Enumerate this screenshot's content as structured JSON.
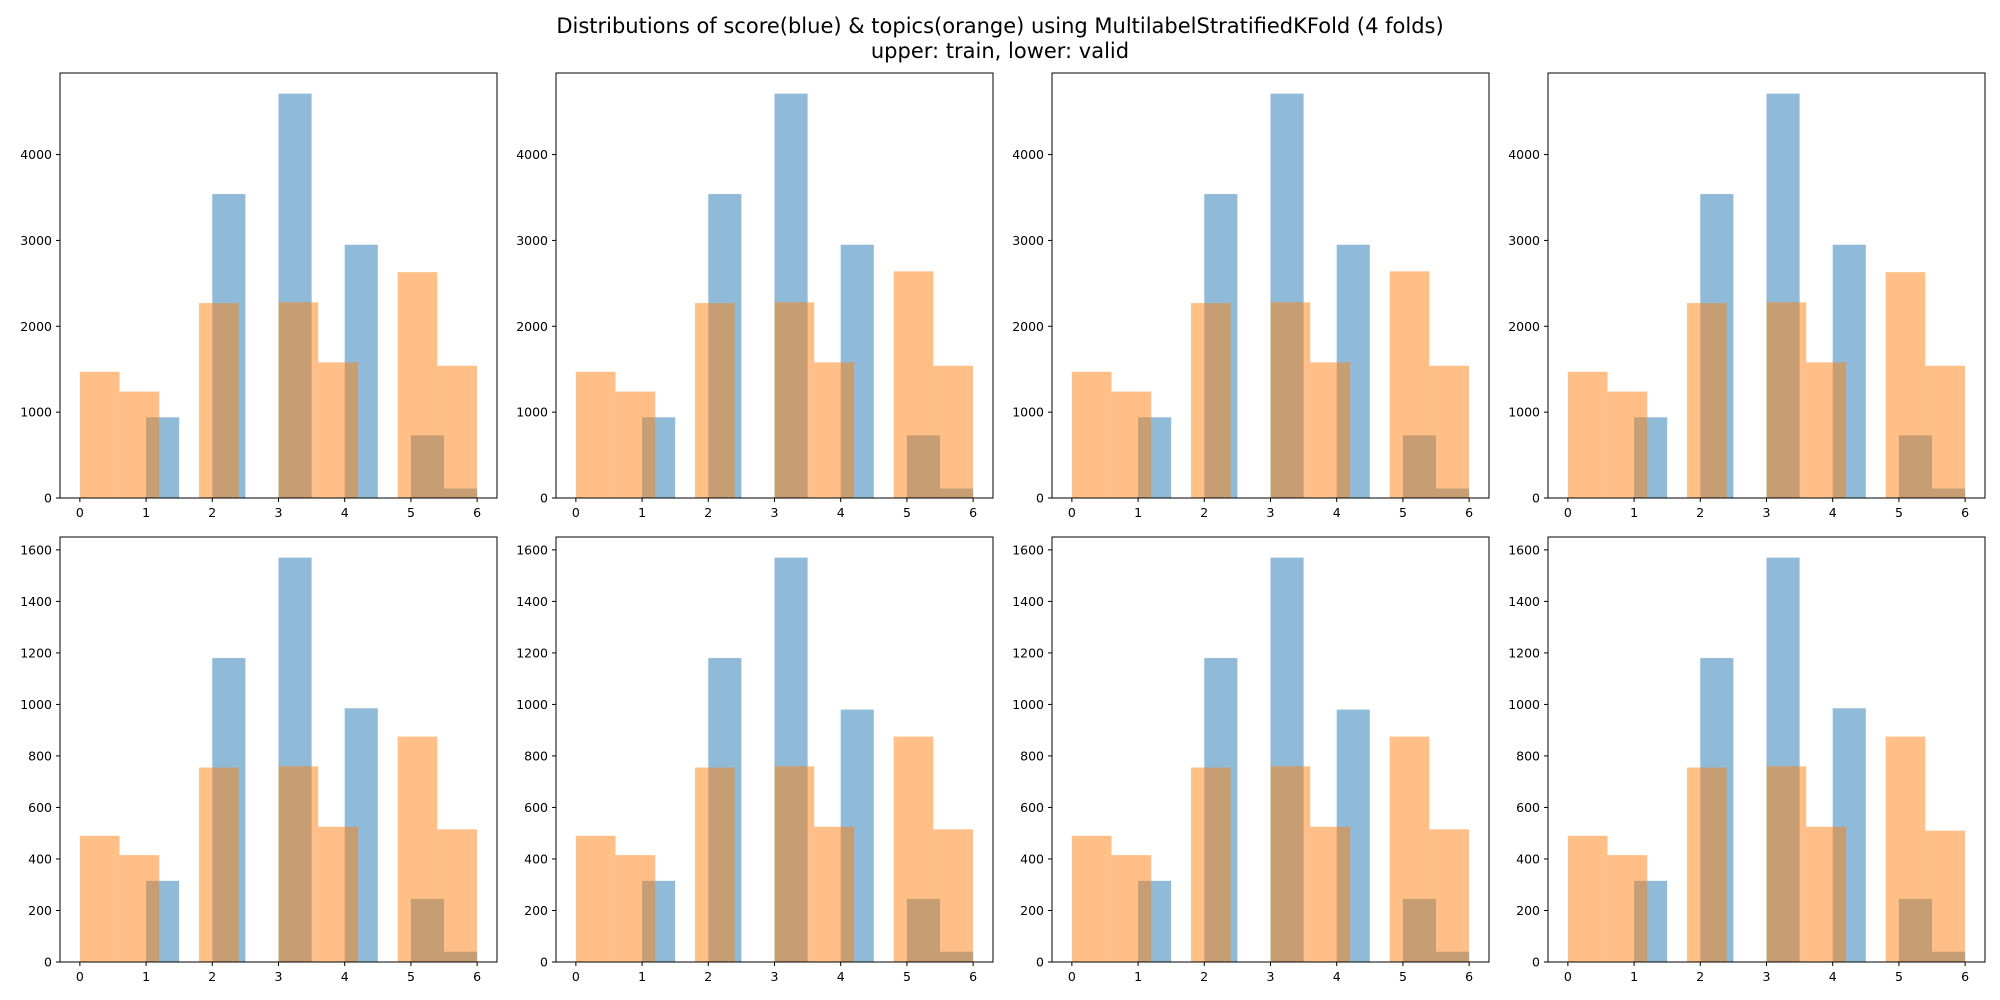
{
  "title": {
    "line1": "Distributions of score(blue) & topics(orange) using MultilabelStratifiedKFold (4 folds)",
    "line2": "upper: train, lower: valid"
  },
  "colors": {
    "score": "#1f77b4",
    "topics": "#ff7f0e",
    "alpha": 0.5
  },
  "chart_data": [
    {
      "type": "bar",
      "row": "train",
      "fold": 1,
      "xlim": [
        -0.3,
        6.3
      ],
      "ylim": [
        0,
        4950
      ],
      "xticks": [
        0,
        1,
        2,
        3,
        4,
        5,
        6
      ],
      "yticks": [
        0,
        1000,
        2000,
        3000,
        4000
      ],
      "series": [
        {
          "name": "score",
          "bin_width": 0.5,
          "bins": [
            [
              1.0,
              940
            ],
            [
              2.0,
              3540
            ],
            [
              3.0,
              4710
            ],
            [
              4.0,
              2950
            ],
            [
              5.0,
              730
            ],
            [
              5.5,
              110
            ]
          ]
        },
        {
          "name": "topics",
          "bin_width": 0.6,
          "bins": [
            [
              0.0,
              1470
            ],
            [
              0.6,
              1240
            ],
            [
              1.8,
              2270
            ],
            [
              3.0,
              2280
            ],
            [
              3.6,
              1580
            ],
            [
              4.8,
              2630
            ],
            [
              5.4,
              1540
            ]
          ]
        }
      ]
    },
    {
      "type": "bar",
      "row": "train",
      "fold": 2,
      "xlim": [
        -0.3,
        6.3
      ],
      "ylim": [
        0,
        4950
      ],
      "xticks": [
        0,
        1,
        2,
        3,
        4,
        5,
        6
      ],
      "yticks": [
        0,
        1000,
        2000,
        3000,
        4000
      ],
      "series": [
        {
          "name": "score",
          "bin_width": 0.5,
          "bins": [
            [
              1.0,
              940
            ],
            [
              2.0,
              3540
            ],
            [
              3.0,
              4710
            ],
            [
              4.0,
              2950
            ],
            [
              5.0,
              730
            ],
            [
              5.5,
              110
            ]
          ]
        },
        {
          "name": "topics",
          "bin_width": 0.6,
          "bins": [
            [
              0.0,
              1470
            ],
            [
              0.6,
              1240
            ],
            [
              1.8,
              2270
            ],
            [
              3.0,
              2280
            ],
            [
              3.6,
              1580
            ],
            [
              4.8,
              2640
            ],
            [
              5.4,
              1540
            ]
          ]
        }
      ]
    },
    {
      "type": "bar",
      "row": "train",
      "fold": 3,
      "xlim": [
        -0.3,
        6.3
      ],
      "ylim": [
        0,
        4950
      ],
      "xticks": [
        0,
        1,
        2,
        3,
        4,
        5,
        6
      ],
      "yticks": [
        0,
        1000,
        2000,
        3000,
        4000
      ],
      "series": [
        {
          "name": "score",
          "bin_width": 0.5,
          "bins": [
            [
              1.0,
              940
            ],
            [
              2.0,
              3540
            ],
            [
              3.0,
              4710
            ],
            [
              4.0,
              2950
            ],
            [
              5.0,
              730
            ],
            [
              5.5,
              110
            ]
          ]
        },
        {
          "name": "topics",
          "bin_width": 0.6,
          "bins": [
            [
              0.0,
              1470
            ],
            [
              0.6,
              1240
            ],
            [
              1.8,
              2270
            ],
            [
              3.0,
              2280
            ],
            [
              3.6,
              1580
            ],
            [
              4.8,
              2640
            ],
            [
              5.4,
              1540
            ]
          ]
        }
      ]
    },
    {
      "type": "bar",
      "row": "train",
      "fold": 4,
      "xlim": [
        -0.3,
        6.3
      ],
      "ylim": [
        0,
        4950
      ],
      "xticks": [
        0,
        1,
        2,
        3,
        4,
        5,
        6
      ],
      "yticks": [
        0,
        1000,
        2000,
        3000,
        4000
      ],
      "series": [
        {
          "name": "score",
          "bin_width": 0.5,
          "bins": [
            [
              1.0,
              940
            ],
            [
              2.0,
              3540
            ],
            [
              3.0,
              4710
            ],
            [
              4.0,
              2950
            ],
            [
              5.0,
              730
            ],
            [
              5.5,
              110
            ]
          ]
        },
        {
          "name": "topics",
          "bin_width": 0.6,
          "bins": [
            [
              0.0,
              1470
            ],
            [
              0.6,
              1240
            ],
            [
              1.8,
              2270
            ],
            [
              3.0,
              2280
            ],
            [
              3.6,
              1580
            ],
            [
              4.8,
              2630
            ],
            [
              5.4,
              1540
            ]
          ]
        }
      ]
    },
    {
      "type": "bar",
      "row": "valid",
      "fold": 1,
      "xlim": [
        -0.3,
        6.3
      ],
      "ylim": [
        0,
        1650
      ],
      "xticks": [
        0,
        1,
        2,
        3,
        4,
        5,
        6
      ],
      "yticks": [
        0,
        200,
        400,
        600,
        800,
        1000,
        1200,
        1400,
        1600
      ],
      "series": [
        {
          "name": "score",
          "bin_width": 0.5,
          "bins": [
            [
              1.0,
              315
            ],
            [
              2.0,
              1180
            ],
            [
              3.0,
              1570
            ],
            [
              4.0,
              985
            ],
            [
              5.0,
              245
            ],
            [
              5.5,
              40
            ]
          ]
        },
        {
          "name": "topics",
          "bin_width": 0.6,
          "bins": [
            [
              0.0,
              490
            ],
            [
              0.6,
              415
            ],
            [
              1.8,
              755
            ],
            [
              3.0,
              760
            ],
            [
              3.6,
              525
            ],
            [
              4.8,
              875
            ],
            [
              5.4,
              515
            ]
          ]
        }
      ]
    },
    {
      "type": "bar",
      "row": "valid",
      "fold": 2,
      "xlim": [
        -0.3,
        6.3
      ],
      "ylim": [
        0,
        1650
      ],
      "xticks": [
        0,
        1,
        2,
        3,
        4,
        5,
        6
      ],
      "yticks": [
        0,
        200,
        400,
        600,
        800,
        1000,
        1200,
        1400,
        1600
      ],
      "series": [
        {
          "name": "score",
          "bin_width": 0.5,
          "bins": [
            [
              1.0,
              315
            ],
            [
              2.0,
              1180
            ],
            [
              3.0,
              1570
            ],
            [
              4.0,
              980
            ],
            [
              5.0,
              245
            ],
            [
              5.5,
              40
            ]
          ]
        },
        {
          "name": "topics",
          "bin_width": 0.6,
          "bins": [
            [
              0.0,
              490
            ],
            [
              0.6,
              415
            ],
            [
              1.8,
              755
            ],
            [
              3.0,
              760
            ],
            [
              3.6,
              525
            ],
            [
              4.8,
              875
            ],
            [
              5.4,
              515
            ]
          ]
        }
      ]
    },
    {
      "type": "bar",
      "row": "valid",
      "fold": 3,
      "xlim": [
        -0.3,
        6.3
      ],
      "ylim": [
        0,
        1650
      ],
      "xticks": [
        0,
        1,
        2,
        3,
        4,
        5,
        6
      ],
      "yticks": [
        0,
        200,
        400,
        600,
        800,
        1000,
        1200,
        1400,
        1600
      ],
      "series": [
        {
          "name": "score",
          "bin_width": 0.5,
          "bins": [
            [
              1.0,
              315
            ],
            [
              2.0,
              1180
            ],
            [
              3.0,
              1570
            ],
            [
              4.0,
              980
            ],
            [
              5.0,
              245
            ],
            [
              5.5,
              40
            ]
          ]
        },
        {
          "name": "topics",
          "bin_width": 0.6,
          "bins": [
            [
              0.0,
              490
            ],
            [
              0.6,
              415
            ],
            [
              1.8,
              755
            ],
            [
              3.0,
              760
            ],
            [
              3.6,
              525
            ],
            [
              4.8,
              875
            ],
            [
              5.4,
              515
            ]
          ]
        }
      ]
    },
    {
      "type": "bar",
      "row": "valid",
      "fold": 4,
      "xlim": [
        -0.3,
        6.3
      ],
      "ylim": [
        0,
        1650
      ],
      "xticks": [
        0,
        1,
        2,
        3,
        4,
        5,
        6
      ],
      "yticks": [
        0,
        200,
        400,
        600,
        800,
        1000,
        1200,
        1400,
        1600
      ],
      "series": [
        {
          "name": "score",
          "bin_width": 0.5,
          "bins": [
            [
              1.0,
              315
            ],
            [
              2.0,
              1180
            ],
            [
              3.0,
              1570
            ],
            [
              4.0,
              985
            ],
            [
              5.0,
              245
            ],
            [
              5.5,
              40
            ]
          ]
        },
        {
          "name": "topics",
          "bin_width": 0.6,
          "bins": [
            [
              0.0,
              490
            ],
            [
              0.6,
              415
            ],
            [
              1.8,
              755
            ],
            [
              3.0,
              760
            ],
            [
              3.6,
              525
            ],
            [
              4.8,
              875
            ],
            [
              5.4,
              510
            ]
          ]
        }
      ]
    }
  ]
}
